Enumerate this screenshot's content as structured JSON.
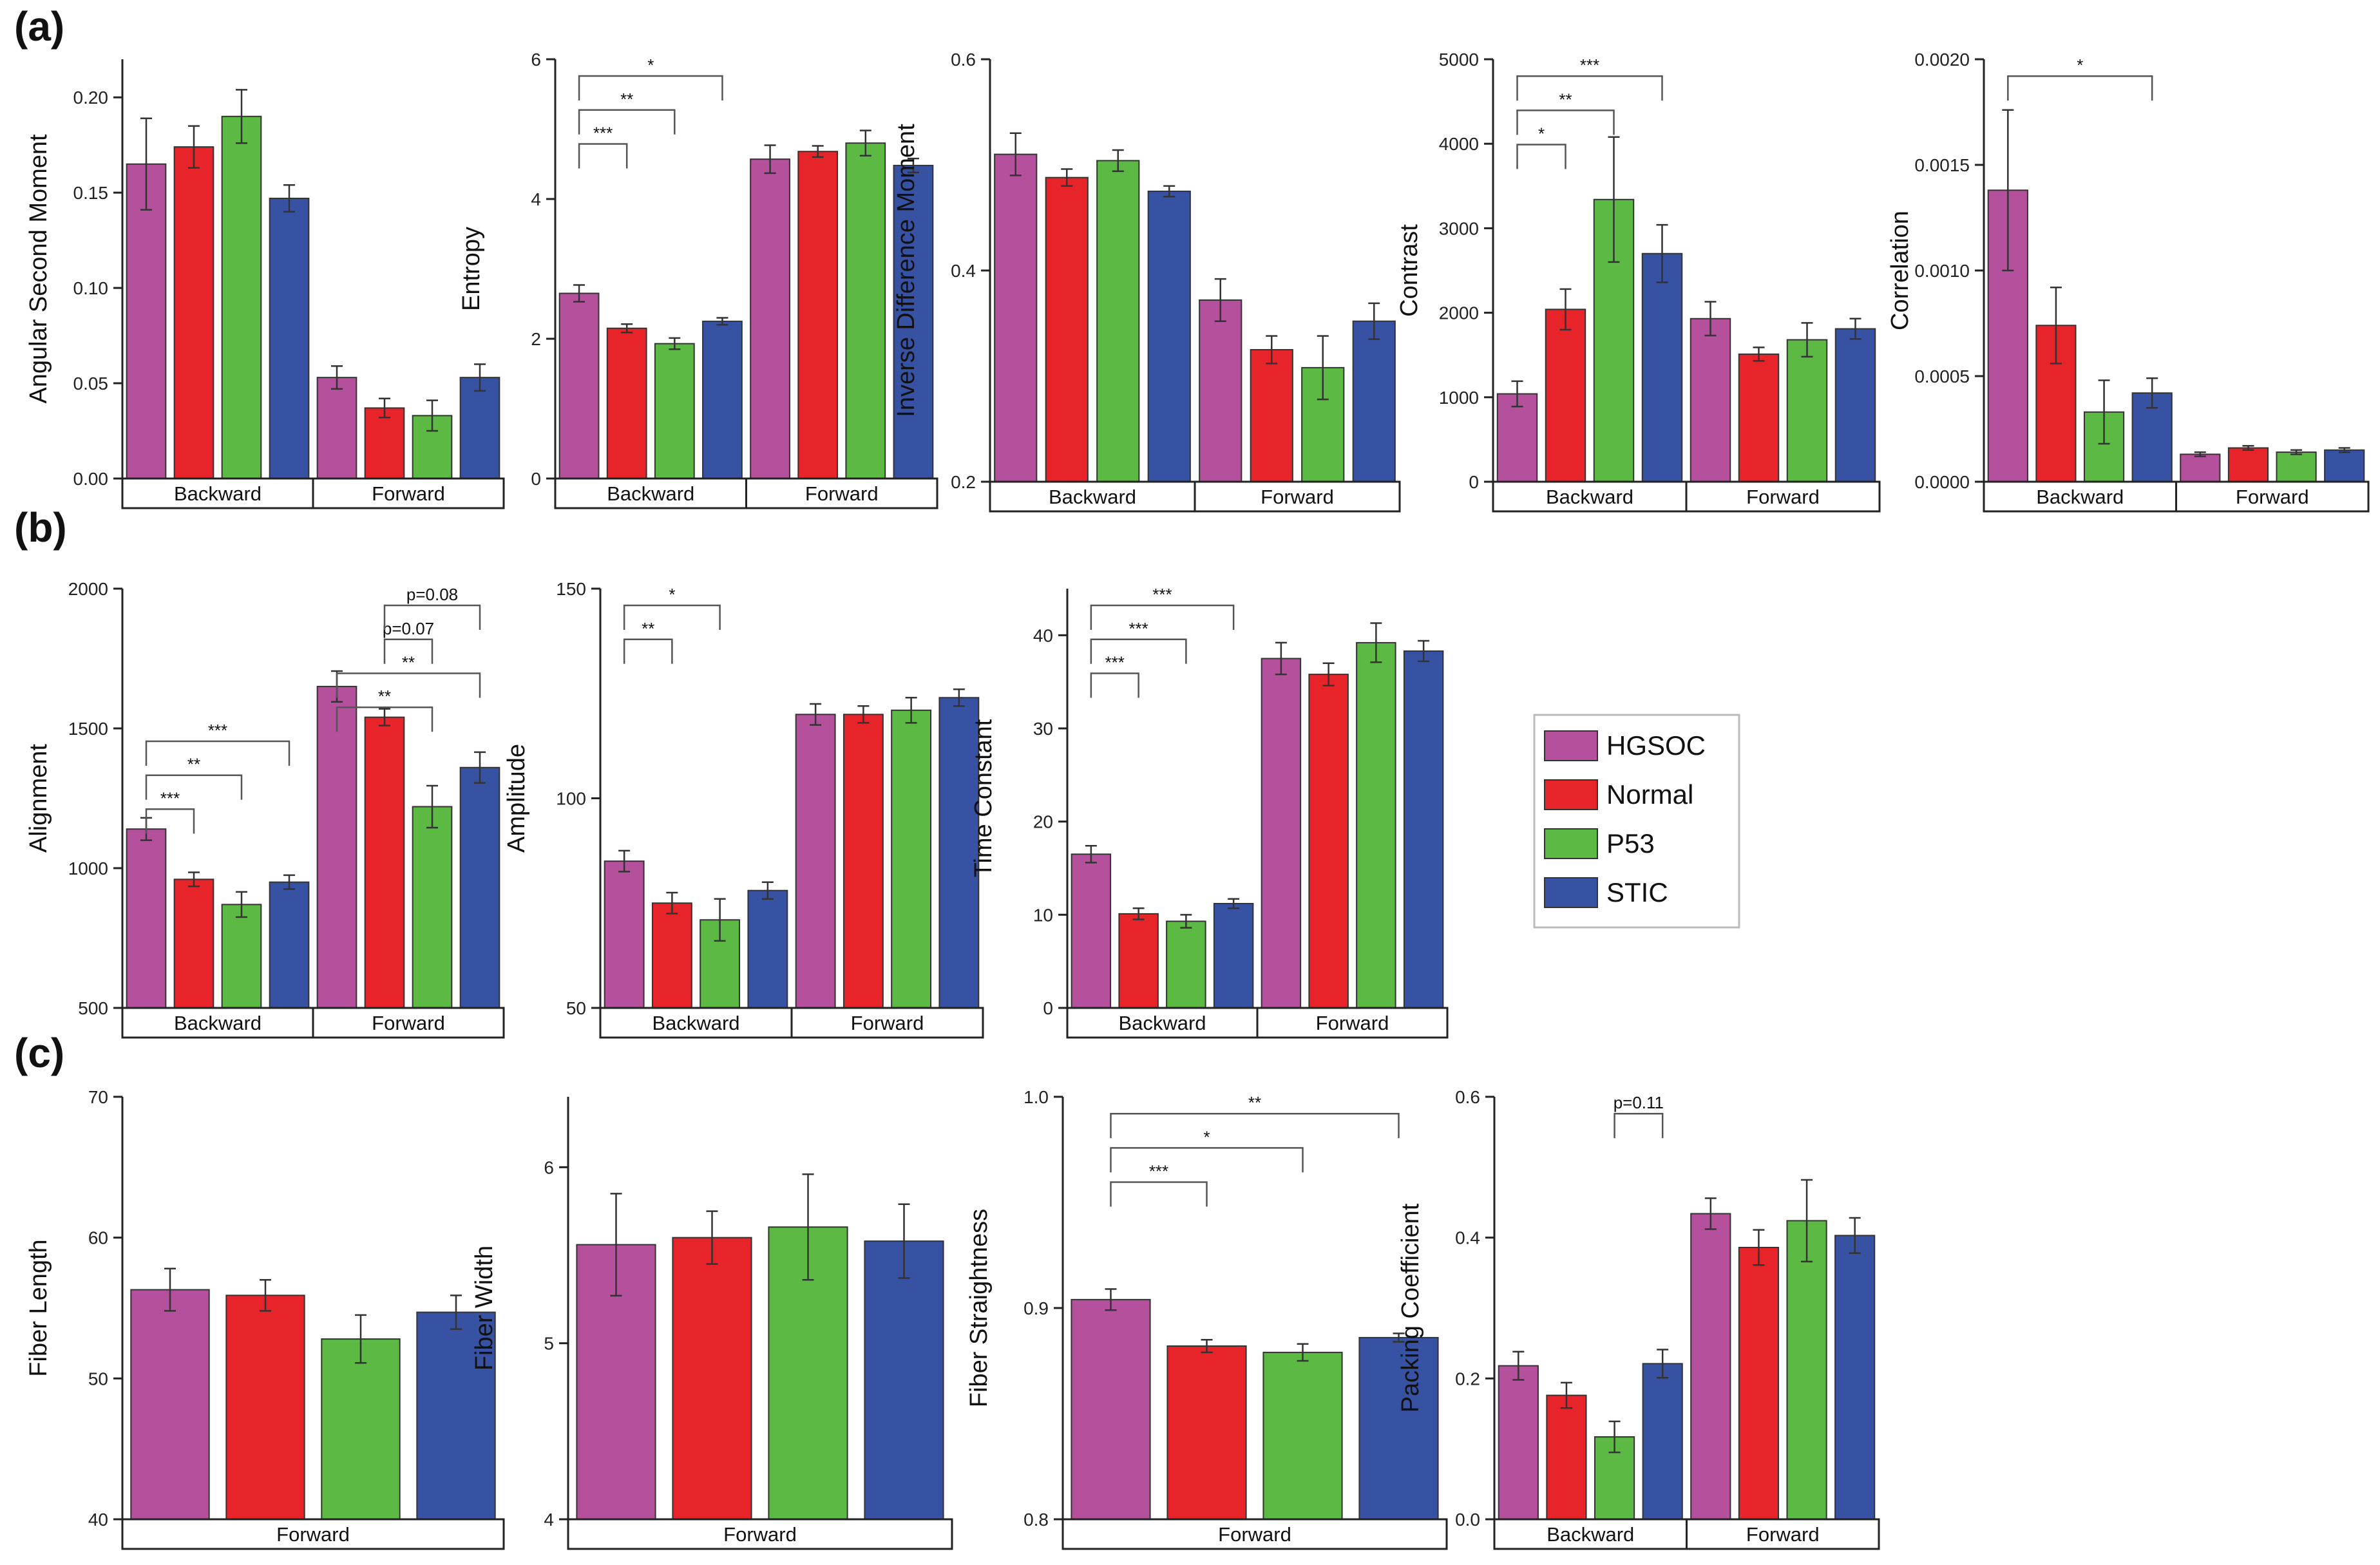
{
  "panel_labels": [
    "(a)",
    "(b)",
    "(c)"
  ],
  "legend": {
    "items": [
      {
        "name": "HGSOC",
        "color": "#b5509d"
      },
      {
        "name": "Normal",
        "color": "#e8242b"
      },
      {
        "name": "P53",
        "color": "#5bb944"
      },
      {
        "name": "STIC",
        "color": "#3752a3"
      }
    ]
  },
  "chart_data": [
    {
      "type": "bar",
      "ylabel": "Angular Second Moment",
      "ylim": [
        0,
        0.22
      ],
      "yticks": [
        "0.00",
        "0.05",
        "0.10",
        "0.15",
        "0.20"
      ],
      "groups": [
        "Backward",
        "Forward"
      ],
      "values": [
        [
          0.165,
          0.174,
          0.19,
          0.147
        ],
        [
          0.053,
          0.037,
          0.033,
          0.053
        ]
      ],
      "errors": [
        [
          0.024,
          0.011,
          0.014,
          0.007
        ],
        [
          0.006,
          0.005,
          0.008,
          0.007
        ]
      ],
      "significance": []
    },
    {
      "type": "bar",
      "ylabel": "Entropy",
      "ylim": [
        0,
        6
      ],
      "yticks": [
        "0",
        "2",
        "4",
        "6"
      ],
      "groups": [
        "Backward",
        "Forward"
      ],
      "values": [
        [
          2.65,
          2.15,
          1.93,
          2.25
        ],
        [
          4.57,
          4.68,
          4.8,
          4.48
        ]
      ],
      "errors": [
        [
          0.12,
          0.06,
          0.08,
          0.05
        ],
        [
          0.2,
          0.08,
          0.18,
          0.1
        ]
      ],
      "significance": [
        {
          "from": 0,
          "to": 1,
          "label": "***"
        },
        {
          "from": 0,
          "to": 2,
          "label": "**"
        },
        {
          "from": 0,
          "to": 3,
          "label": "*"
        }
      ]
    },
    {
      "type": "bar",
      "ylabel": "Inverse Difference Moment",
      "ylim": [
        0.2,
        0.6
      ],
      "yticks": [
        "0.2",
        "0.4",
        "0.6"
      ],
      "groups": [
        "Backward",
        "Forward"
      ],
      "values": [
        [
          0.51,
          0.488,
          0.504,
          0.475
        ],
        [
          0.372,
          0.325,
          0.308,
          0.352
        ]
      ],
      "errors": [
        [
          0.02,
          0.008,
          0.01,
          0.005
        ],
        [
          0.02,
          0.013,
          0.03,
          0.017
        ]
      ],
      "significance": []
    },
    {
      "type": "bar",
      "ylabel": "Contrast",
      "ylim": [
        0,
        5000
      ],
      "yticks": [
        "0",
        "1000",
        "2000",
        "3000",
        "4000",
        "5000"
      ],
      "groups": [
        "Backward",
        "Forward"
      ],
      "values": [
        [
          1040,
          2040,
          3340,
          2700
        ],
        [
          1930,
          1510,
          1680,
          1810
        ]
      ],
      "errors": [
        [
          150,
          240,
          740,
          340
        ],
        [
          200,
          80,
          200,
          120
        ]
      ],
      "significance": [
        {
          "from": 0,
          "to": 1,
          "label": "*"
        },
        {
          "from": 0,
          "to": 2,
          "label": "**"
        },
        {
          "from": 0,
          "to": 3,
          "label": "***"
        }
      ]
    },
    {
      "type": "bar",
      "ylabel": "Correlation",
      "ylim": [
        0,
        0.002
      ],
      "yticks": [
        "0.0000",
        "0.0005",
        "0.0010",
        "0.0015",
        "0.0020"
      ],
      "groups": [
        "Backward",
        "Forward"
      ],
      "values": [
        [
          0.00138,
          0.00074,
          0.00033,
          0.00042
        ],
        [
          0.00013,
          0.00016,
          0.00014,
          0.00015
        ]
      ],
      "errors": [
        [
          0.00038,
          0.00018,
          0.00015,
          7e-05
        ],
        [
          1e-05,
          1e-05,
          1e-05,
          1e-05
        ]
      ],
      "significance": [
        {
          "from": 0,
          "to": 3,
          "label": "*"
        }
      ]
    },
    {
      "type": "bar",
      "ylabel": "Alignment",
      "ylim": [
        500,
        2000
      ],
      "yticks": [
        "500",
        "1000",
        "1500",
        "2000"
      ],
      "groups": [
        "Backward",
        "Forward"
      ],
      "values": [
        [
          1140,
          960,
          870,
          950
        ],
        [
          1650,
          1540,
          1220,
          1360
        ]
      ],
      "errors": [
        [
          40,
          25,
          45,
          25
        ],
        [
          55,
          30,
          75,
          55
        ]
      ],
      "significance": [
        {
          "from": 0,
          "to": 1,
          "label": "***"
        },
        {
          "from": 0,
          "to": 2,
          "label": "**"
        },
        {
          "from": 0,
          "to": 3,
          "label": "***"
        },
        {
          "from": 4,
          "to": 6,
          "label": "**"
        },
        {
          "from": 4,
          "to": 7,
          "label": "**"
        },
        {
          "from": 5,
          "to": 6,
          "label": "p=0.07"
        },
        {
          "from": 5,
          "to": 7,
          "label": "p=0.08"
        }
      ]
    },
    {
      "type": "bar",
      "ylabel": "Amplitude",
      "ylim": [
        50,
        150
      ],
      "yticks": [
        "50",
        "100",
        "150"
      ],
      "groups": [
        "Backward",
        "Forward"
      ],
      "values": [
        [
          85,
          75,
          71,
          78
        ],
        [
          120,
          120,
          121,
          124
        ]
      ],
      "errors": [
        [
          2.5,
          2.5,
          5,
          2
        ],
        [
          2.5,
          2,
          3,
          2
        ]
      ],
      "significance": [
        {
          "from": 0,
          "to": 1,
          "label": "**"
        },
        {
          "from": 0,
          "to": 2,
          "label": "*"
        }
      ]
    },
    {
      "type": "bar",
      "ylabel": "Time Constant",
      "ylim": [
        0,
        45
      ],
      "yticks": [
        "0",
        "10",
        "20",
        "30",
        "40"
      ],
      "groups": [
        "Backward",
        "Forward"
      ],
      "values": [
        [
          16.5,
          10.1,
          9.3,
          11.2
        ],
        [
          37.5,
          35.8,
          39.2,
          38.3
        ]
      ],
      "errors": [
        [
          0.9,
          0.6,
          0.7,
          0.5
        ],
        [
          1.7,
          1.2,
          2.1,
          1.1
        ]
      ],
      "significance": [
        {
          "from": 0,
          "to": 1,
          "label": "***"
        },
        {
          "from": 0,
          "to": 2,
          "label": "***"
        },
        {
          "from": 0,
          "to": 3,
          "label": "***"
        }
      ]
    },
    {
      "type": "bar",
      "ylabel": "Fiber Length",
      "ylim": [
        40,
        70
      ],
      "yticks": [
        "40",
        "50",
        "60",
        "70"
      ],
      "groups": [
        "Forward"
      ],
      "values": [
        [
          56.3,
          55.9,
          52.8,
          54.7
        ]
      ],
      "errors": [
        [
          1.5,
          1.1,
          1.7,
          1.2
        ]
      ],
      "significance": []
    },
    {
      "type": "bar",
      "ylabel": "Fiber Width",
      "ylim": [
        4,
        6.4
      ],
      "yticks": [
        "4",
        "5",
        "6"
      ],
      "groups": [
        "Forward"
      ],
      "values": [
        [
          5.56,
          5.6,
          5.66,
          5.58
        ]
      ],
      "errors": [
        [
          0.29,
          0.15,
          0.3,
          0.21
        ]
      ],
      "significance": []
    },
    {
      "type": "bar",
      "ylabel": "Fiber Straightness",
      "ylim": [
        0.8,
        1.0
      ],
      "yticks": [
        "0.8",
        "0.9",
        "1.0"
      ],
      "groups": [
        "Forward"
      ],
      "values": [
        [
          0.904,
          0.882,
          0.879,
          0.886
        ]
      ],
      "errors": [
        [
          0.005,
          0.003,
          0.004,
          0.002
        ]
      ],
      "significance": [
        {
          "from": 0,
          "to": 1,
          "label": "***"
        },
        {
          "from": 0,
          "to": 2,
          "label": "*"
        },
        {
          "from": 0,
          "to": 3,
          "label": "**"
        }
      ]
    },
    {
      "type": "bar",
      "ylabel": "Packing Coefficient",
      "ylim": [
        0,
        0.6
      ],
      "yticks": [
        "0.0",
        "0.2",
        "0.4",
        "0.6"
      ],
      "groups": [
        "Backward",
        "Forward"
      ],
      "values": [
        [
          0.218,
          0.176,
          0.117,
          0.221
        ],
        [
          0.434,
          0.386,
          0.424,
          0.403
        ]
      ],
      "errors": [
        [
          0.02,
          0.018,
          0.022,
          0.02
        ],
        [
          0.022,
          0.025,
          0.058,
          0.025
        ]
      ],
      "significance": [
        {
          "from": 2,
          "to": 3,
          "label": "p=0.11"
        }
      ]
    }
  ]
}
